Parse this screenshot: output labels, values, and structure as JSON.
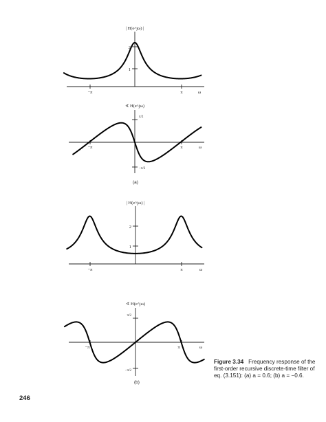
{
  "figure": {
    "panels": [
      {
        "id": "a-magnitude",
        "ylabel": "| H(e^jω) |",
        "ytick_labels": [
          "1",
          "2"
        ],
        "xtick_labels": [
          "−π",
          "π"
        ],
        "xlabel": "ω"
      },
      {
        "id": "a-phase",
        "ylabel": "∢ H(e^jω)",
        "ytick_labels": [
          "π/2",
          "−π/2"
        ],
        "xtick_labels": [
          "−π",
          "π"
        ],
        "xlabel": "ω",
        "sublabel": "(a)"
      },
      {
        "id": "b-magnitude",
        "ylabel": "| H(e^jω) |",
        "ytick_labels": [
          "1",
          "2"
        ],
        "xtick_labels": [
          "−π",
          "π"
        ],
        "xlabel": "ω"
      },
      {
        "id": "b-phase",
        "ylabel": "∢ H(e^jω)",
        "ytick_labels": [
          "π/2",
          "−π/2"
        ],
        "xtick_labels": [
          "−π",
          "π"
        ],
        "xlabel": "ω",
        "sublabel": "(b)"
      }
    ],
    "caption_number": "Figure 3.34",
    "caption_text": "Frequency response of the first-order recursive discrete-time filter of eq. (3.151): (a) a = 0.6; (b) a = −0.6.",
    "page_number": "246"
  }
}
